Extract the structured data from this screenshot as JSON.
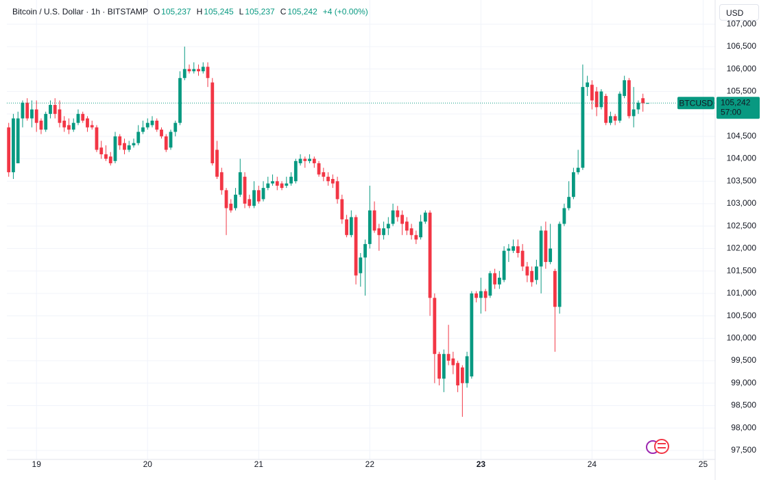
{
  "chart_data": {
    "type": "candlestick",
    "title": "Bitcoin / U.S. Dollar · 1h · BITSTAMP",
    "header_fields": [
      {
        "key": "O",
        "value": "105,237"
      },
      {
        "key": "H",
        "value": "105,245"
      },
      {
        "key": "L",
        "value": "105,237"
      },
      {
        "key": "C",
        "value": "105,242"
      }
    ],
    "change": "+4 (+0.00%)",
    "currency": "USD",
    "symbol": "BTCUSD",
    "price_label": "105,242",
    "countdown": "57:00",
    "up_color": "#089981",
    "down_color": "#f23645",
    "grid": true,
    "open": [
      104700,
      103700,
      103900,
      104900,
      105250,
      104900,
      105100,
      104850,
      104650,
      105000,
      105200,
      105100,
      104850,
      104750,
      104650,
      104800,
      105000,
      104900,
      104750,
      104700,
      104250,
      104100,
      104050,
      103950,
      104500,
      104350,
      104200,
      104300,
      104350,
      104600,
      104700,
      104750,
      104850,
      104650,
      104500,
      104250,
      104600,
      104800,
      105800,
      106000,
      105950,
      106000,
      105950,
      106050,
      105700,
      104200,
      103700,
      103300,
      103000,
      102900,
      103200,
      103600,
      103100,
      102950,
      103300,
      103100,
      103350,
      103450,
      103500,
      103450,
      103400,
      103450,
      103500,
      103900,
      104000,
      103950,
      104000,
      103900,
      103700,
      103600,
      103550,
      103500,
      103100,
      102650,
      102300,
      102700,
      101450,
      101800,
      102100,
      102850,
      102450,
      102300,
      102450,
      102550,
      102850,
      102750,
      102600,
      102450,
      102300,
      102250,
      102600,
      102800,
      100900,
      99650,
      99100,
      99650,
      99550,
      99450,
      99350,
      99000,
      99150,
      101000,
      100900,
      101050,
      100950,
      101450,
      101200,
      101300,
      101950,
      101950,
      102050,
      101950,
      101600,
      101500,
      101300,
      101600,
      102400,
      101700,
      101500,
      100700,
      102550,
      102900,
      103150,
      103700,
      103800,
      105600,
      105650,
      105500,
      105150,
      105400,
      104800,
      104950,
      104850,
      105400,
      105750,
      104950,
      105100,
      105350,
      105237
    ],
    "high": [
      104800,
      105000,
      105050,
      105300,
      105350,
      105300,
      105300,
      104900,
      105050,
      105300,
      105350,
      105300,
      104950,
      104900,
      104900,
      105100,
      105050,
      104950,
      104850,
      104750,
      104400,
      104300,
      104150,
      104600,
      104550,
      104450,
      104400,
      104450,
      104750,
      104850,
      104900,
      104950,
      104900,
      104700,
      104550,
      104650,
      104850,
      105950,
      106500,
      106100,
      106150,
      106100,
      106150,
      106150,
      105800,
      104400,
      103800,
      103350,
      103100,
      103350,
      104000,
      103700,
      103200,
      103500,
      103400,
      103500,
      103600,
      103650,
      103600,
      103500,
      103600,
      103700,
      104000,
      104100,
      104050,
      104100,
      104050,
      103950,
      103800,
      103700,
      103650,
      103600,
      103200,
      102750,
      102850,
      102750,
      101900,
      102200,
      103400,
      103050,
      102550,
      102600,
      102700,
      103000,
      102950,
      102850,
      102700,
      102550,
      102400,
      102750,
      102850,
      102850,
      101000,
      99700,
      99750,
      100300,
      99700,
      99500,
      99400,
      99700,
      101050,
      101050,
      101350,
      101100,
      101500,
      101550,
      101500,
      102050,
      102100,
      102200,
      102200,
      102100,
      101700,
      101600,
      101750,
      102500,
      102600,
      102550,
      101550,
      102600,
      103000,
      103500,
      103800,
      104200,
      106100,
      105850,
      105750,
      105600,
      105550,
      105450,
      105050,
      105000,
      105500,
      105850,
      105800,
      105600,
      105300,
      105450,
      105245
    ],
    "low": [
      103600,
      103550,
      103900,
      104700,
      104850,
      104700,
      104600,
      104550,
      104600,
      104900,
      104900,
      104700,
      104600,
      104550,
      104600,
      104750,
      104800,
      104600,
      104650,
      104150,
      104000,
      103950,
      103850,
      103900,
      104200,
      104100,
      104150,
      104250,
      104300,
      104550,
      104650,
      104700,
      104600,
      104450,
      104150,
      104200,
      104500,
      104750,
      105750,
      105900,
      105900,
      105850,
      105900,
      105600,
      103850,
      103550,
      103200,
      102300,
      102800,
      102850,
      103150,
      102900,
      102900,
      102900,
      103000,
      103050,
      103300,
      103400,
      103300,
      103300,
      103350,
      103400,
      103450,
      103850,
      103800,
      103900,
      103800,
      103600,
      103500,
      103400,
      103350,
      103000,
      102550,
      102250,
      102250,
      101200,
      101150,
      100950,
      102000,
      102350,
      101950,
      102200,
      102300,
      102500,
      102600,
      102300,
      102300,
      102200,
      102100,
      102200,
      102550,
      100500,
      99000,
      98950,
      98800,
      99400,
      99200,
      98800,
      98250,
      98900,
      99100,
      100800,
      100550,
      100600,
      100900,
      101100,
      101100,
      101250,
      101700,
      101900,
      101800,
      101500,
      101250,
      101150,
      101200,
      101000,
      101550,
      101650,
      99700,
      100550,
      102500,
      102850,
      103100,
      103650,
      103750,
      105400,
      105100,
      104950,
      105100,
      104750,
      104750,
      104750,
      104800,
      105350,
      104900,
      104700,
      105000,
      105050,
      105237
    ],
    "close": [
      103700,
      104900,
      104900,
      105250,
      104900,
      105100,
      104800,
      104650,
      105000,
      105200,
      105000,
      104800,
      104700,
      104650,
      104800,
      105000,
      104850,
      104700,
      104700,
      104200,
      104100,
      104000,
      103900,
      104500,
      104300,
      104200,
      104300,
      104350,
      104600,
      104700,
      104800,
      104850,
      104650,
      104500,
      104200,
      104600,
      104800,
      105800,
      106000,
      105950,
      106000,
      105950,
      106050,
      105800,
      103900,
      103600,
      103300,
      102900,
      102850,
      103200,
      103700,
      103000,
      102950,
      103300,
      103050,
      103350,
      103450,
      103500,
      103400,
      103350,
      103450,
      103600,
      103950,
      104000,
      103950,
      104000,
      103900,
      103650,
      103600,
      103500,
      103450,
      103100,
      102650,
      102300,
      102700,
      101400,
      101800,
      102100,
      102850,
      102400,
      102300,
      102450,
      102550,
      102850,
      102700,
      102550,
      102400,
      102300,
      102200,
      102600,
      102800,
      100900,
      99650,
      99100,
      99650,
      99500,
      99400,
      98950,
      99000,
      99600,
      101000,
      100900,
      101050,
      100900,
      101450,
      101200,
      101350,
      101950,
      102000,
      102050,
      101900,
      101600,
      101400,
      101250,
      101600,
      102400,
      101700,
      102000,
      100700,
      102550,
      102900,
      103150,
      103700,
      103800,
      105600,
      105700,
      105300,
      105150,
      105500,
      104800,
      104950,
      104850,
      105450,
      105750,
      104950,
      105100,
      105250,
      105237,
      105242
    ],
    "xlim": [
      -0.4,
      152.6
    ],
    "xticks": [
      {
        "value": 6,
        "label": "19"
      },
      {
        "value": 30,
        "label": "20"
      },
      {
        "value": 54,
        "label": "21"
      },
      {
        "value": 78,
        "label": "22"
      },
      {
        "value": 102,
        "label": "23",
        "bold": true
      },
      {
        "value": 126,
        "label": "24"
      },
      {
        "value": 150,
        "label": "25"
      }
    ],
    "ylim": [
      97300,
      107080
    ],
    "yticks": [
      {
        "value": 97500,
        "label": "97,500"
      },
      {
        "value": 98000,
        "label": "98,000"
      },
      {
        "value": 98500,
        "label": "98,500"
      },
      {
        "value": 99000,
        "label": "99,000"
      },
      {
        "value": 99500,
        "label": "99,500"
      },
      {
        "value": 100000,
        "label": "100,000"
      },
      {
        "value": 100500,
        "label": "100,500"
      },
      {
        "value": 101000,
        "label": "101,000"
      },
      {
        "value": 101500,
        "label": "101,500"
      },
      {
        "value": 102000,
        "label": "102,000"
      },
      {
        "value": 102500,
        "label": "102,500"
      },
      {
        "value": 103000,
        "label": "103,000"
      },
      {
        "value": 103500,
        "label": "103,500"
      },
      {
        "value": 104000,
        "label": "104,000"
      },
      {
        "value": 104500,
        "label": "104,500"
      },
      {
        "value": 105000,
        "label": "105,000"
      },
      {
        "value": 105500,
        "label": "105,500"
      },
      {
        "value": 106000,
        "label": "106,000"
      },
      {
        "value": 106500,
        "label": "106,500"
      },
      {
        "value": 107000,
        "label": "107,000"
      }
    ]
  }
}
